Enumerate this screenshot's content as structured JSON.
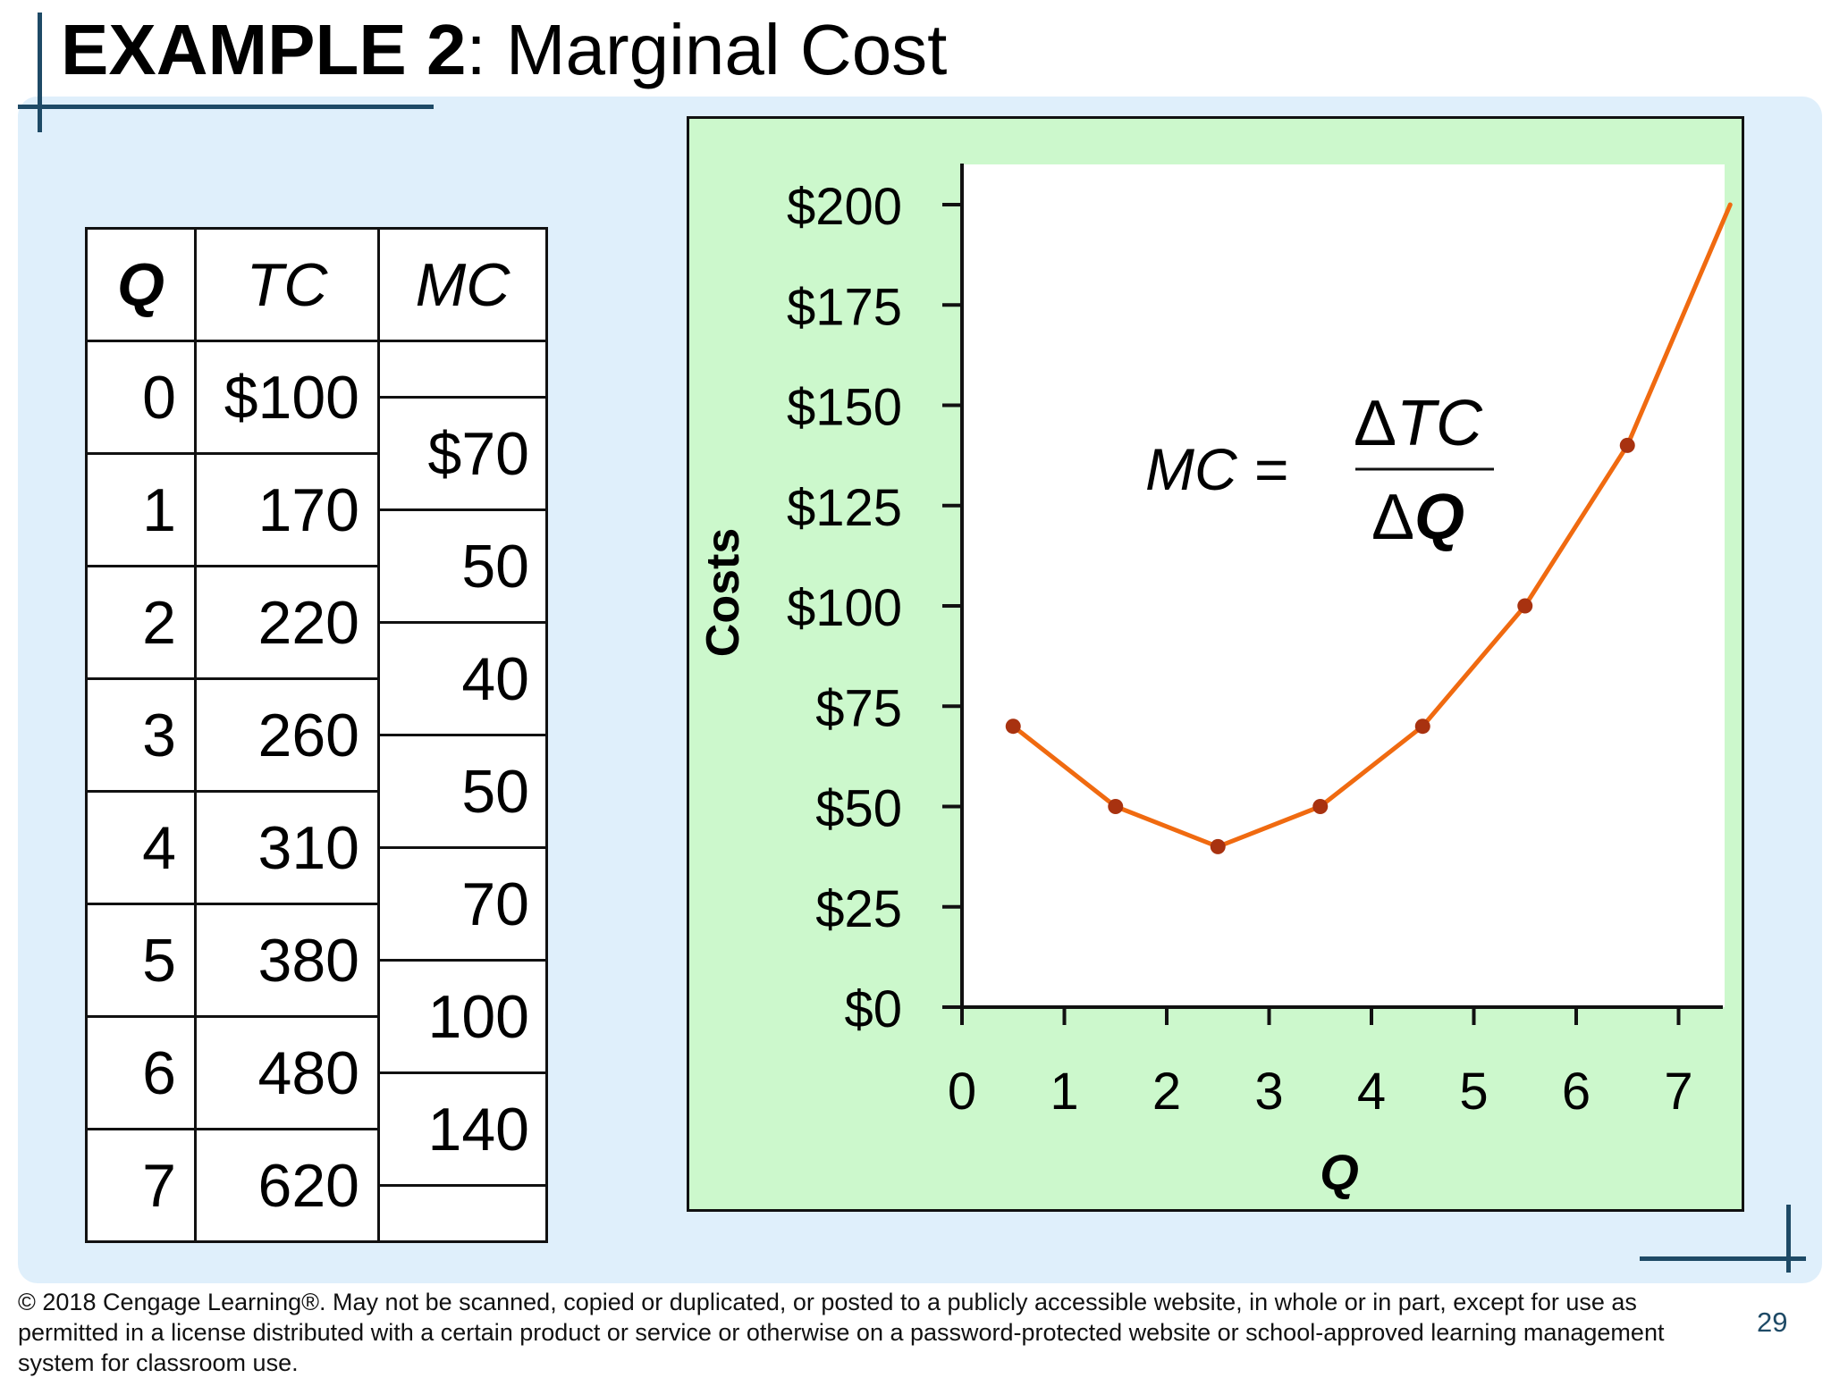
{
  "title": {
    "bold": "EXAMPLE 2",
    "rest": ":  Marginal Cost"
  },
  "table": {
    "headers": {
      "q": "Q",
      "tc": "TC",
      "mc": "MC"
    },
    "rows": [
      {
        "q": "0",
        "tc": "$100"
      },
      {
        "q": "1",
        "tc": "170"
      },
      {
        "q": "2",
        "tc": "220"
      },
      {
        "q": "3",
        "tc": "260"
      },
      {
        "q": "4",
        "tc": "310"
      },
      {
        "q": "5",
        "tc": "380"
      },
      {
        "q": "6",
        "tc": "480"
      },
      {
        "q": "7",
        "tc": "620"
      }
    ],
    "mc_values": [
      "$70",
      "50",
      "40",
      "50",
      "70",
      "100",
      "140"
    ]
  },
  "chart_data": {
    "type": "line",
    "ylabel": "Costs",
    "xlabel": "Q",
    "x": [
      0.5,
      1.5,
      2.5,
      3.5,
      4.5,
      5.5,
      6.5
    ],
    "series": [
      {
        "values": [
          70,
          50,
          40,
          50,
          70,
          100,
          140
        ]
      }
    ],
    "curve_end": {
      "x": 7.5,
      "y": 200
    },
    "xlim": [
      0,
      7.5
    ],
    "ylim": [
      0,
      200
    ],
    "yticks": [
      0,
      25,
      50,
      75,
      100,
      125,
      150,
      175,
      200
    ],
    "ytick_labels": [
      "$0",
      "$25",
      "$50",
      "$75",
      "$100",
      "$125",
      "$150",
      "$175",
      "$200"
    ],
    "xticks": [
      0,
      1,
      2,
      3,
      4,
      5,
      6,
      7
    ],
    "xtick_labels": [
      "0",
      "1",
      "2",
      "3",
      "4",
      "5",
      "6",
      "7"
    ],
    "grid": false,
    "line_color": "#f06a10",
    "marker_color": "#a83210",
    "formula": {
      "lhs": "MC =",
      "num_delta": "Δ",
      "num_var": "TC",
      "den_delta": "Δ",
      "den_var": "Q"
    }
  },
  "footer": "© 2018 Cengage Learning®. May not be scanned, copied or duplicated, or posted to a publicly accessible website, in whole or in part, except for use as permitted in a license distributed with a certain product or service or otherwise on a password-protected website or school-approved learning management system for classroom use.",
  "page_number": "29"
}
